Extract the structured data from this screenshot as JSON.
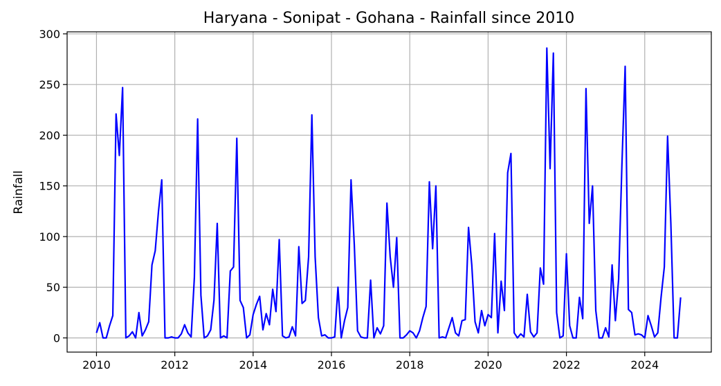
{
  "chart_data": {
    "type": "line",
    "title": "Haryana - Sonipat - Gohana - Rainfall since 2010",
    "xlabel": "",
    "ylabel": "Rainfall",
    "xlim": [
      2009.25,
      2025.7
    ],
    "ylim": [
      -14,
      302
    ],
    "x_ticks": [
      2010,
      2012,
      2014,
      2016,
      2018,
      2020,
      2022,
      2024
    ],
    "y_ticks": [
      0,
      50,
      100,
      150,
      200,
      250,
      300
    ],
    "grid": true,
    "line_color": "#0000ff",
    "series": [
      {
        "x_start": 2010,
        "x_step_months": 1,
        "values": [
          5,
          15,
          0,
          0,
          12,
          22,
          221,
          180,
          247,
          0,
          2,
          6,
          0,
          25,
          2,
          8,
          16,
          72,
          86,
          125,
          156,
          0,
          0,
          1,
          0,
          0,
          4,
          13,
          5,
          1,
          60,
          216,
          42,
          0,
          2,
          8,
          37,
          113,
          0,
          2,
          0,
          66,
          70,
          197,
          37,
          30,
          0,
          3,
          23,
          33,
          41,
          8,
          24,
          13,
          48,
          26,
          97,
          2,
          0,
          1,
          11,
          2,
          90,
          34,
          37,
          80,
          220,
          80,
          20,
          2,
          3,
          0,
          0,
          1,
          50,
          0,
          17,
          30,
          156,
          92,
          7,
          1,
          0,
          0,
          57,
          0,
          10,
          4,
          12,
          133,
          80,
          50,
          99,
          0,
          0,
          3,
          7,
          5,
          0,
          7,
          20,
          31,
          154,
          88,
          150,
          0,
          1,
          0,
          10,
          20,
          5,
          2,
          17,
          18,
          109,
          72,
          16,
          5,
          27,
          12,
          23,
          20,
          103,
          5,
          56,
          27,
          163,
          182,
          5,
          0,
          4,
          1,
          43,
          6,
          1,
          5,
          69,
          53,
          286,
          167,
          281,
          25,
          0,
          2,
          83,
          12,
          0,
          0,
          40,
          19,
          246,
          113,
          150,
          27,
          0,
          0,
          10,
          1,
          72,
          17,
          58,
          170,
          268,
          28,
          25,
          3,
          4,
          3,
          0,
          22,
          12,
          1,
          5,
          40,
          70,
          199,
          113,
          0,
          0,
          40
        ]
      }
    ]
  }
}
